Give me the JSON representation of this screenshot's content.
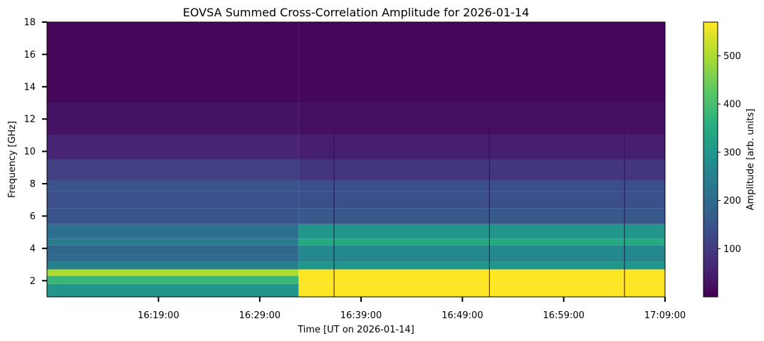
{
  "chart_data": {
    "type": "heatmap",
    "title": "EOVSA Summed Cross-Correlation Amplitude for 2026-01-14",
    "xlabel": "Time [UT on 2026-01-14]",
    "ylabel": "Frequency [GHz]",
    "colorbar_label": "Amplitude [arb. units]",
    "colormap": "viridis",
    "colormap_stops": [
      "#440154",
      "#472c7a",
      "#3b518b",
      "#2c718e",
      "#21908d",
      "#27ad81",
      "#5cc863",
      "#aadc32",
      "#fde725"
    ],
    "xlim": [
      "16:08:00",
      "17:09:00"
    ],
    "ylim": [
      1,
      18
    ],
    "clim": [
      0,
      570
    ],
    "x_ticks": [
      "16:19:00",
      "16:29:00",
      "16:39:00",
      "16:49:00",
      "16:59:00",
      "17:09:00"
    ],
    "y_ticks": [
      2,
      4,
      6,
      8,
      10,
      12,
      14,
      16,
      18
    ],
    "colorbar_ticks": [
      100,
      200,
      300,
      400,
      500
    ],
    "events": {
      "step_time": "16:32:50",
      "vertical_lines": [
        "16:36:20",
        "16:51:40",
        "17:05:00"
      ]
    },
    "spectrum_profile": [
      {
        "freq": [
          1.0,
          1.8
        ],
        "before": 300,
        "after": 570
      },
      {
        "freq": [
          1.8,
          2.3
        ],
        "before": 380,
        "after": 570
      },
      {
        "freq": [
          2.3,
          2.7
        ],
        "before": 500,
        "after": 570
      },
      {
        "freq": [
          2.7,
          3.2
        ],
        "before": 250,
        "after": 300
      },
      {
        "freq": [
          3.2,
          3.6
        ],
        "before": 200,
        "after": 260
      },
      {
        "freq": [
          3.6,
          4.2
        ],
        "before": 190,
        "after": 270
      },
      {
        "freq": [
          4.2,
          4.6
        ],
        "before": 240,
        "after": 350
      },
      {
        "freq": [
          4.6,
          5.5
        ],
        "before": 210,
        "after": 300
      },
      {
        "freq": [
          5.5,
          6.5
        ],
        "before": 150,
        "after": 160
      },
      {
        "freq": [
          6.5,
          7.5
        ],
        "before": 140,
        "after": 140
      },
      {
        "freq": [
          7.5,
          8.2
        ],
        "before": 150,
        "after": 140
      },
      {
        "freq": [
          8.2,
          9.5
        ],
        "before": 110,
        "after": 90
      },
      {
        "freq": [
          9.5,
          11.0
        ],
        "before": 60,
        "after": 50
      },
      {
        "freq": [
          11.0,
          13.0
        ],
        "before": 30,
        "after": 25
      },
      {
        "freq": [
          13.0,
          18.0
        ],
        "before": 10,
        "after": 10
      }
    ]
  }
}
